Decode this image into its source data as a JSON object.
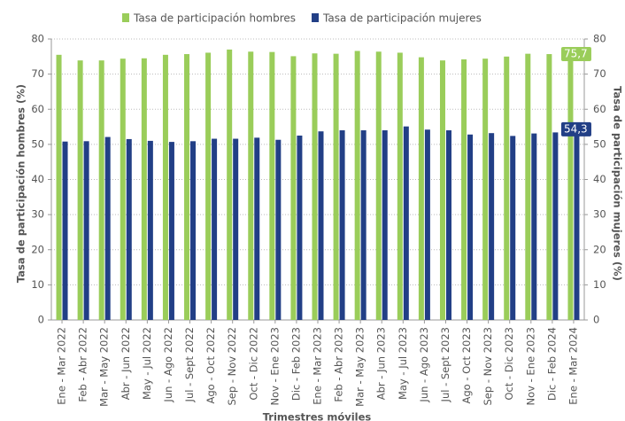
{
  "chart_data": {
    "type": "bar",
    "x_label": "Trimestres móviles",
    "y_label": "Tasa de participación hombres (%)",
    "y2_label": "Tasa de participación mujeres (%)",
    "categories": [
      "Ene - Mar 2022",
      "Feb - Abr 2022",
      "Mar - May 2022",
      "Abr - Jun 2022",
      "May - Jul 2022",
      "Jun - Ago 2022",
      "Jul - Sept 2022",
      "Ago - Oct 2022",
      "Sep - Nov 2022",
      "Oct - Dic 2022",
      "Nov - Ene 2023",
      "Dic - Feb 2023",
      "Ene - Mar 2023",
      "Feb - Abr 2023",
      "Mar - May 2023",
      "Abr - Jun 2023",
      "May - Jul 2023",
      "Jun - Ago 2023",
      "Jul - Sept 2023",
      "Ago - Oct 2023",
      "Sep - Nov 2023",
      "Oct - Dic 2023",
      "Nov - Ene 2023",
      "Dic - Feb 2024",
      "Ene - Mar 2024"
    ],
    "series": [
      {
        "name": "Tasa de participación hombres",
        "color": "#9acd5a",
        "values": [
          75.5,
          73.9,
          73.9,
          74.4,
          74.5,
          75.5,
          75.7,
          76.1,
          77.0,
          76.4,
          76.3,
          75.1,
          75.9,
          75.8,
          76.6,
          76.4,
          76.1,
          74.8,
          73.9,
          74.2,
          74.4,
          75.0,
          75.8,
          75.7,
          75.7
        ],
        "value_labels": [
          null,
          null,
          null,
          null,
          null,
          null,
          null,
          null,
          null,
          null,
          null,
          null,
          null,
          null,
          null,
          null,
          null,
          null,
          null,
          null,
          null,
          null,
          null,
          null,
          "75,7"
        ]
      },
      {
        "name": "Tasa de participación mujeres",
        "color": "#223f86",
        "axis": "y2",
        "values": [
          50.8,
          50.9,
          52.1,
          51.5,
          51.0,
          50.7,
          50.9,
          51.6,
          51.6,
          51.9,
          51.3,
          52.5,
          53.7,
          54.0,
          54.0,
          54.0,
          55.1,
          54.2,
          54.0,
          52.8,
          53.2,
          52.4,
          53.1,
          53.4,
          54.3
        ],
        "value_labels": [
          null,
          null,
          null,
          null,
          null,
          null,
          null,
          null,
          null,
          null,
          null,
          null,
          null,
          null,
          null,
          null,
          null,
          null,
          null,
          null,
          null,
          null,
          null,
          null,
          "54,3"
        ]
      }
    ],
    "ylim": [
      0,
      80
    ],
    "yticks": [
      0,
      10,
      20,
      30,
      40,
      50,
      60,
      70,
      80
    ],
    "y2lim": [
      0,
      80
    ],
    "y2ticks": [
      0,
      10,
      20,
      30,
      40,
      50,
      60,
      70,
      80
    ],
    "grid": true,
    "legend": "top"
  }
}
